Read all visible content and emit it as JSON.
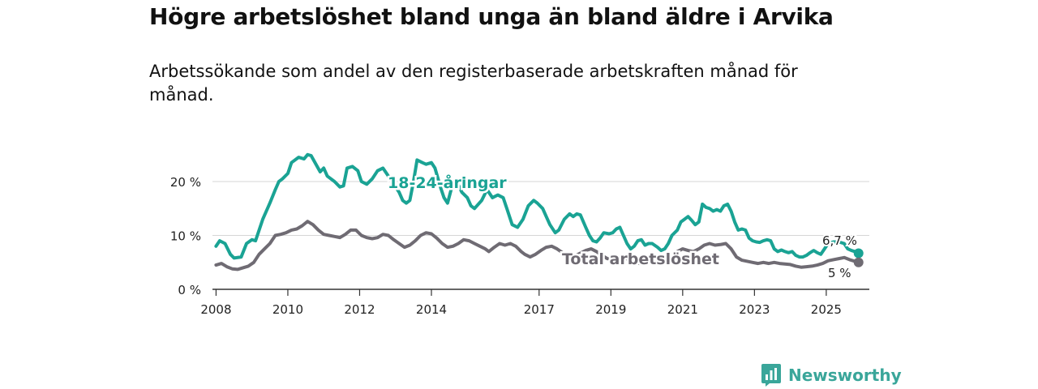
{
  "title": "Högre arbetslöshet bland unga än bland äldre i Arvika",
  "subtitle": "Arbetssökande som andel av den registerbaserade arbetskraften månad för månad.",
  "brand": {
    "name": "Newsworthy"
  },
  "colors": {
    "youth": "#1aa394",
    "total": "#6f6b73",
    "grid": "#d6d6d6",
    "axis": "#333333"
  },
  "chart_data": {
    "type": "line",
    "title": "Högre arbetslöshet bland unga än bland äldre i Arvika",
    "xlabel": "",
    "ylabel": "",
    "xlim": [
      2007.9,
      2026.2
    ],
    "ylim": [
      0,
      20
    ],
    "y_ticks": [
      0,
      10,
      20
    ],
    "y_tick_labels": [
      "0 %",
      "10 %",
      "20 %"
    ],
    "x_ticks": [
      2008,
      2010,
      2012,
      2014,
      2017,
      2019,
      2021,
      2023,
      2025
    ],
    "x_tick_labels": [
      "2008",
      "2010",
      "2012",
      "2014",
      "2017",
      "2019",
      "2021",
      "2023",
      "2025"
    ],
    "grid": true,
    "series": [
      {
        "name": "18-24-åringar",
        "label": "18-24-åringar",
        "end_label": "6,7 %",
        "color_key": "youth",
        "points": [
          [
            2008.0,
            8.0
          ],
          [
            2008.1,
            9.0
          ],
          [
            2008.25,
            8.5
          ],
          [
            2008.4,
            6.5
          ],
          [
            2008.5,
            5.8
          ],
          [
            2008.7,
            6.0
          ],
          [
            2008.85,
            8.5
          ],
          [
            2009.0,
            9.2
          ],
          [
            2009.1,
            9.0
          ],
          [
            2009.3,
            13.0
          ],
          [
            2009.5,
            16.0
          ],
          [
            2009.65,
            18.5
          ],
          [
            2009.75,
            20.0
          ],
          [
            2009.85,
            20.5
          ],
          [
            2010.0,
            21.5
          ],
          [
            2010.1,
            23.5
          ],
          [
            2010.3,
            24.5
          ],
          [
            2010.45,
            24.2
          ],
          [
            2010.55,
            25.0
          ],
          [
            2010.65,
            24.8
          ],
          [
            2010.8,
            23.0
          ],
          [
            2010.9,
            21.8
          ],
          [
            2011.0,
            22.5
          ],
          [
            2011.1,
            21.0
          ],
          [
            2011.3,
            20.0
          ],
          [
            2011.45,
            19.0
          ],
          [
            2011.55,
            19.2
          ],
          [
            2011.65,
            22.5
          ],
          [
            2011.8,
            22.8
          ],
          [
            2011.95,
            22.0
          ],
          [
            2012.05,
            20.0
          ],
          [
            2012.2,
            19.5
          ],
          [
            2012.35,
            20.5
          ],
          [
            2012.5,
            22.0
          ],
          [
            2012.65,
            22.5
          ],
          [
            2012.8,
            21.0
          ],
          [
            2012.95,
            19.5
          ],
          [
            2013.1,
            18.0
          ],
          [
            2013.2,
            16.5
          ],
          [
            2013.3,
            16.0
          ],
          [
            2013.4,
            16.5
          ],
          [
            2013.5,
            20.0
          ],
          [
            2013.6,
            24.0
          ],
          [
            2013.75,
            23.5
          ],
          [
            2013.85,
            23.2
          ],
          [
            2014.0,
            23.5
          ],
          [
            2014.1,
            22.5
          ],
          [
            2014.25,
            19.0
          ],
          [
            2014.35,
            17.0
          ],
          [
            2014.45,
            16.0
          ],
          [
            2014.55,
            18.5
          ],
          [
            2014.7,
            20.0
          ],
          [
            2014.85,
            18.0
          ],
          [
            2015.0,
            17.0
          ],
          [
            2015.1,
            15.5
          ],
          [
            2015.2,
            15.0
          ],
          [
            2015.4,
            16.5
          ],
          [
            2015.55,
            18.5
          ],
          [
            2015.7,
            17.0
          ],
          [
            2015.85,
            17.5
          ],
          [
            2016.0,
            17.0
          ],
          [
            2016.1,
            15.0
          ],
          [
            2016.25,
            12.0
          ],
          [
            2016.4,
            11.5
          ],
          [
            2016.55,
            13.0
          ],
          [
            2016.7,
            15.5
          ],
          [
            2016.85,
            16.5
          ],
          [
            2016.95,
            16.0
          ],
          [
            2017.1,
            15.0
          ],
          [
            2017.2,
            13.5
          ],
          [
            2017.3,
            12.0
          ],
          [
            2017.45,
            10.5
          ],
          [
            2017.55,
            11.0
          ],
          [
            2017.7,
            13.0
          ],
          [
            2017.85,
            14.0
          ],
          [
            2017.95,
            13.5
          ],
          [
            2018.05,
            14.0
          ],
          [
            2018.15,
            13.8
          ],
          [
            2018.3,
            11.5
          ],
          [
            2018.4,
            10.0
          ],
          [
            2018.5,
            9.0
          ],
          [
            2018.6,
            8.8
          ],
          [
            2018.7,
            9.5
          ],
          [
            2018.8,
            10.5
          ],
          [
            2018.95,
            10.3
          ],
          [
            2019.05,
            10.5
          ],
          [
            2019.15,
            11.2
          ],
          [
            2019.25,
            11.5
          ],
          [
            2019.35,
            10.0
          ],
          [
            2019.45,
            8.5
          ],
          [
            2019.55,
            7.5
          ],
          [
            2019.65,
            8.0
          ],
          [
            2019.75,
            9.0
          ],
          [
            2019.85,
            9.2
          ],
          [
            2019.95,
            8.2
          ],
          [
            2020.05,
            8.5
          ],
          [
            2020.15,
            8.5
          ],
          [
            2020.3,
            7.8
          ],
          [
            2020.4,
            7.2
          ],
          [
            2020.5,
            7.5
          ],
          [
            2020.6,
            8.5
          ],
          [
            2020.7,
            10.0
          ],
          [
            2020.85,
            11.0
          ],
          [
            2020.95,
            12.5
          ],
          [
            2021.05,
            13.0
          ],
          [
            2021.15,
            13.5
          ],
          [
            2021.25,
            12.8
          ],
          [
            2021.35,
            12.0
          ],
          [
            2021.45,
            12.5
          ],
          [
            2021.55,
            15.8
          ],
          [
            2021.65,
            15.2
          ],
          [
            2021.75,
            15.0
          ],
          [
            2021.85,
            14.5
          ],
          [
            2021.95,
            14.8
          ],
          [
            2022.05,
            14.5
          ],
          [
            2022.15,
            15.5
          ],
          [
            2022.25,
            15.8
          ],
          [
            2022.35,
            14.5
          ],
          [
            2022.45,
            12.5
          ],
          [
            2022.55,
            11.0
          ],
          [
            2022.65,
            11.2
          ],
          [
            2022.75,
            11.0
          ],
          [
            2022.85,
            9.5
          ],
          [
            2022.95,
            9.0
          ],
          [
            2023.05,
            8.8
          ],
          [
            2023.15,
            8.7
          ],
          [
            2023.25,
            9.0
          ],
          [
            2023.35,
            9.2
          ],
          [
            2023.45,
            9.0
          ],
          [
            2023.55,
            7.5
          ],
          [
            2023.65,
            7.0
          ],
          [
            2023.75,
            7.3
          ],
          [
            2023.85,
            7.0
          ],
          [
            2023.95,
            6.8
          ],
          [
            2024.05,
            7.0
          ],
          [
            2024.15,
            6.3
          ],
          [
            2024.25,
            6.0
          ],
          [
            2024.35,
            6.0
          ],
          [
            2024.45,
            6.3
          ],
          [
            2024.55,
            6.8
          ],
          [
            2024.65,
            7.2
          ],
          [
            2024.75,
            6.8
          ],
          [
            2024.85,
            6.5
          ],
          [
            2024.95,
            7.5
          ],
          [
            2025.05,
            8.5
          ],
          [
            2025.2,
            8.8
          ],
          [
            2025.35,
            8.8
          ],
          [
            2025.5,
            8.5
          ],
          [
            2025.6,
            7.5
          ],
          [
            2025.7,
            7.2
          ],
          [
            2025.8,
            7.0
          ],
          [
            2025.9,
            6.7
          ]
        ]
      },
      {
        "name": "Total arbetslöshet",
        "label": "Total arbetslöshet",
        "end_label": "5 %",
        "color_key": "total",
        "points": [
          [
            2008.0,
            4.5
          ],
          [
            2008.15,
            4.8
          ],
          [
            2008.3,
            4.2
          ],
          [
            2008.45,
            3.8
          ],
          [
            2008.6,
            3.7
          ],
          [
            2008.75,
            4.0
          ],
          [
            2008.9,
            4.3
          ],
          [
            2009.05,
            5.0
          ],
          [
            2009.2,
            6.5
          ],
          [
            2009.35,
            7.5
          ],
          [
            2009.5,
            8.5
          ],
          [
            2009.65,
            10.0
          ],
          [
            2009.8,
            10.2
          ],
          [
            2009.95,
            10.5
          ],
          [
            2010.1,
            11.0
          ],
          [
            2010.25,
            11.2
          ],
          [
            2010.4,
            11.8
          ],
          [
            2010.55,
            12.6
          ],
          [
            2010.7,
            12.0
          ],
          [
            2010.85,
            11.0
          ],
          [
            2011.0,
            10.2
          ],
          [
            2011.15,
            10.0
          ],
          [
            2011.3,
            9.8
          ],
          [
            2011.45,
            9.6
          ],
          [
            2011.6,
            10.2
          ],
          [
            2011.75,
            11.0
          ],
          [
            2011.9,
            11.0
          ],
          [
            2012.05,
            10.0
          ],
          [
            2012.2,
            9.6
          ],
          [
            2012.35,
            9.4
          ],
          [
            2012.5,
            9.6
          ],
          [
            2012.65,
            10.2
          ],
          [
            2012.8,
            10.0
          ],
          [
            2012.95,
            9.2
          ],
          [
            2013.1,
            8.5
          ],
          [
            2013.25,
            7.8
          ],
          [
            2013.4,
            8.2
          ],
          [
            2013.55,
            9.0
          ],
          [
            2013.7,
            10.0
          ],
          [
            2013.85,
            10.5
          ],
          [
            2014.0,
            10.3
          ],
          [
            2014.15,
            9.5
          ],
          [
            2014.3,
            8.5
          ],
          [
            2014.45,
            7.8
          ],
          [
            2014.6,
            8.0
          ],
          [
            2014.75,
            8.5
          ],
          [
            2014.9,
            9.2
          ],
          [
            2015.05,
            9.0
          ],
          [
            2015.2,
            8.5
          ],
          [
            2015.35,
            8.0
          ],
          [
            2015.5,
            7.5
          ],
          [
            2015.6,
            7.0
          ],
          [
            2015.75,
            7.8
          ],
          [
            2015.9,
            8.5
          ],
          [
            2016.05,
            8.2
          ],
          [
            2016.2,
            8.5
          ],
          [
            2016.35,
            8.0
          ],
          [
            2016.5,
            7.0
          ],
          [
            2016.6,
            6.5
          ],
          [
            2016.75,
            6.0
          ],
          [
            2016.9,
            6.5
          ],
          [
            2017.05,
            7.2
          ],
          [
            2017.2,
            7.8
          ],
          [
            2017.35,
            8.0
          ],
          [
            2017.5,
            7.5
          ],
          [
            2017.65,
            6.8
          ],
          [
            2017.75,
            6.3
          ],
          [
            2017.9,
            5.9
          ],
          [
            2018.0,
            6.2
          ],
          [
            2018.15,
            6.7
          ],
          [
            2018.3,
            7.2
          ],
          [
            2018.45,
            7.5
          ],
          [
            2018.6,
            7.0
          ],
          [
            2018.75,
            6.3
          ],
          [
            2018.9,
            5.7
          ],
          [
            2019.05,
            5.5
          ],
          [
            2019.2,
            5.8
          ],
          [
            2019.35,
            6.0
          ],
          [
            2019.5,
            5.5
          ],
          [
            2019.65,
            5.0
          ],
          [
            2019.8,
            4.8
          ],
          [
            2019.95,
            4.9
          ],
          [
            2020.1,
            5.1
          ],
          [
            2020.25,
            5.2
          ],
          [
            2020.4,
            5.0
          ],
          [
            2020.55,
            5.2
          ],
          [
            2020.7,
            6.0
          ],
          [
            2020.85,
            7.0
          ],
          [
            2021.0,
            7.5
          ],
          [
            2021.15,
            7.2
          ],
          [
            2021.3,
            7.0
          ],
          [
            2021.45,
            7.5
          ],
          [
            2021.6,
            8.2
          ],
          [
            2021.75,
            8.5
          ],
          [
            2021.9,
            8.2
          ],
          [
            2022.05,
            8.3
          ],
          [
            2022.2,
            8.5
          ],
          [
            2022.35,
            7.5
          ],
          [
            2022.5,
            6.0
          ],
          [
            2022.65,
            5.4
          ],
          [
            2022.8,
            5.2
          ],
          [
            2022.95,
            5.0
          ],
          [
            2023.1,
            4.8
          ],
          [
            2023.25,
            5.0
          ],
          [
            2023.4,
            4.8
          ],
          [
            2023.55,
            5.0
          ],
          [
            2023.7,
            4.8
          ],
          [
            2023.85,
            4.7
          ],
          [
            2024.0,
            4.6
          ],
          [
            2024.15,
            4.3
          ],
          [
            2024.3,
            4.1
          ],
          [
            2024.45,
            4.2
          ],
          [
            2024.6,
            4.3
          ],
          [
            2024.75,
            4.5
          ],
          [
            2024.9,
            4.8
          ],
          [
            2025.05,
            5.3
          ],
          [
            2025.2,
            5.5
          ],
          [
            2025.35,
            5.7
          ],
          [
            2025.5,
            5.9
          ],
          [
            2025.65,
            5.5
          ],
          [
            2025.8,
            5.2
          ],
          [
            2025.9,
            5.0
          ]
        ]
      }
    ]
  }
}
